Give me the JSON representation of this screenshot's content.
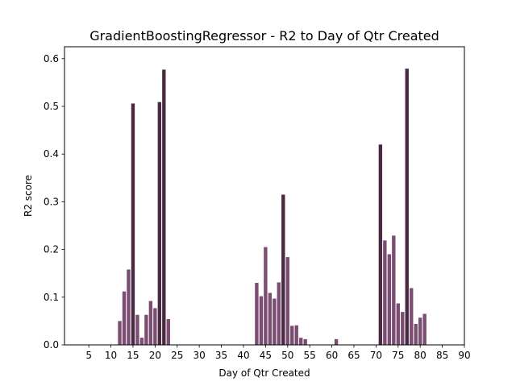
{
  "chart_data": {
    "type": "bar",
    "title": "GradientBoostingRegressor - R2 to Day of Qtr Created",
    "xlabel": "Day of Qtr Created",
    "ylabel": "R2 score",
    "xlim": [
      -0.5,
      90
    ],
    "ylim": [
      0,
      0.625
    ],
    "xticks": [
      5,
      10,
      15,
      20,
      25,
      30,
      35,
      40,
      45,
      50,
      55,
      60,
      65,
      70,
      75,
      80,
      85,
      90
    ],
    "yticks": [
      0.0,
      0.1,
      0.2,
      0.3,
      0.4,
      0.5,
      0.6
    ],
    "ytick_labels": [
      "0.0",
      "0.1",
      "0.2",
      "0.3",
      "0.4",
      "0.5",
      "0.6"
    ],
    "grid": false,
    "colors": {
      "low": "#7c4d72",
      "high": "#4a2a40"
    },
    "x": [
      12,
      13,
      14,
      15,
      16,
      17,
      18,
      19,
      20,
      21,
      22,
      23,
      43,
      44,
      45,
      46,
      47,
      48,
      49,
      50,
      51,
      52,
      53,
      54,
      61,
      71,
      72,
      73,
      74,
      75,
      76,
      77,
      78,
      79,
      80,
      81
    ],
    "values": [
      0.05,
      0.112,
      0.158,
      0.506,
      0.063,
      0.015,
      0.063,
      0.092,
      0.077,
      0.509,
      0.577,
      0.054,
      0.13,
      0.102,
      0.205,
      0.109,
      0.097,
      0.131,
      0.315,
      0.184,
      0.04,
      0.041,
      0.015,
      0.012,
      0.012,
      0.42,
      0.219,
      0.19,
      0.229,
      0.087,
      0.069,
      0.579,
      0.119,
      0.044,
      0.057,
      0.065
    ]
  }
}
